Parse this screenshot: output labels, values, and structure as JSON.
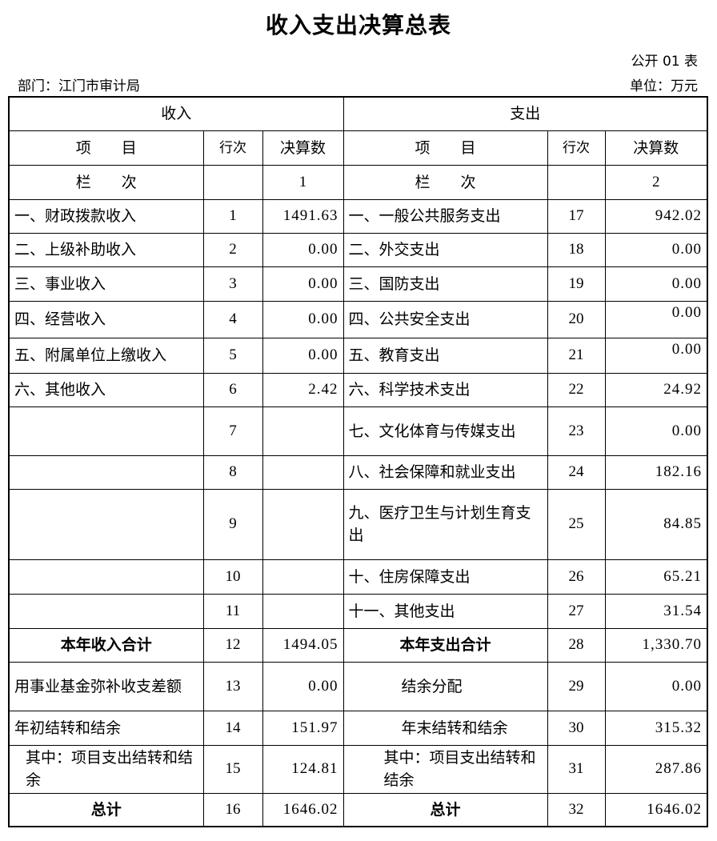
{
  "header": {
    "title": "收入支出决算总表",
    "form_no": "公开 01 表",
    "department": "部门：江门市审计局",
    "unit": "单位：万元"
  },
  "table": {
    "sections": [
      "收入",
      "支出"
    ],
    "columns": [
      "项　　目",
      "行次",
      "决算数",
      "项　　目",
      "行次",
      "决算数"
    ],
    "rows": [
      [
        "栏　　次",
        null,
        "1",
        "栏　　次",
        null,
        "2"
      ],
      [
        "一、财政拨款收入",
        "1",
        "1491.63",
        "一、一般公共服务支出",
        "17",
        "942.02"
      ],
      [
        "二、上级补助收入",
        "2",
        "0.00",
        "二、外交支出",
        "18",
        "0.00"
      ],
      [
        "三、事业收入",
        "3",
        "0.00",
        "三、国防支出",
        "19",
        "0.00"
      ],
      [
        "四、经营收入",
        "4",
        "0.00",
        "四、公共安全支出",
        "20",
        "0.00"
      ],
      [
        "五、附属单位上缴收入",
        "5",
        "0.00",
        "五、教育支出",
        "21",
        "0.00"
      ],
      [
        "六、其他收入",
        "6",
        "2.42",
        "六、科学技术支出",
        "22",
        "24.92"
      ],
      [
        null,
        "7",
        null,
        "七、文化体育与传媒支出",
        "23",
        "0.00"
      ],
      [
        null,
        "8",
        null,
        "八、社会保障和就业支出",
        "24",
        "182.16"
      ],
      [
        null,
        "9",
        null,
        "九、医疗卫生与计划生育支出",
        "25",
        "84.85"
      ],
      [
        null,
        "10",
        null,
        "十、住房保障支出",
        "26",
        "65.21"
      ],
      [
        null,
        "11",
        null,
        "十一、其他支出",
        "27",
        "31.54"
      ],
      [
        "本年收入合计",
        "12",
        "1494.05",
        "本年支出合计",
        "28",
        "1,330.70"
      ],
      [
        "用事业基金弥补收支差额",
        "13",
        "0.00",
        "结余分配",
        "29",
        "0.00"
      ],
      [
        "年初结转和结余",
        "14",
        "151.97",
        "年末结转和结余",
        "30",
        "315.32"
      ],
      [
        "其中：项目支出结转和结余",
        "15",
        "124.81",
        "其中：项目支出结转和结余",
        "31",
        "287.86"
      ],
      [
        "总计",
        "16",
        "1646.02",
        "总计",
        "32",
        "1646.02"
      ]
    ]
  }
}
